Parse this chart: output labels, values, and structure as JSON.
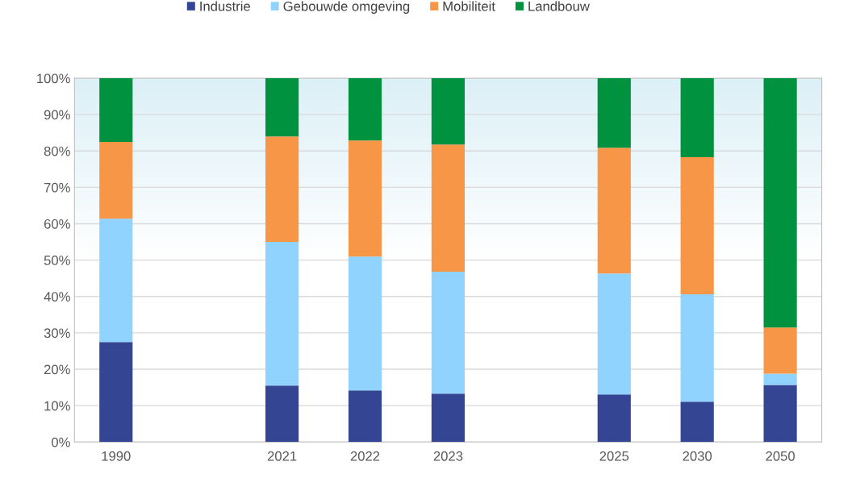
{
  "chart_data": {
    "type": "bar",
    "stacked": true,
    "categories": [
      "1990",
      null,
      "2021",
      "2022",
      "2023",
      null,
      "2025",
      "2030",
      "2050"
    ],
    "series": [
      {
        "name": "Industrie",
        "color": "#344593",
        "values": [
          27.5,
          null,
          15.5,
          14.2,
          13.3,
          null,
          13.1,
          11.1,
          15.7
        ]
      },
      {
        "name": "Gebouwde omgeving",
        "color": "#8fd3fe",
        "values": [
          33.9,
          null,
          39.5,
          36.8,
          33.5,
          null,
          33.2,
          29.5,
          3.1
        ]
      },
      {
        "name": "Mobiliteit",
        "color": "#f79646",
        "values": [
          21.1,
          null,
          29.0,
          31.9,
          35.0,
          null,
          34.6,
          37.7,
          12.7
        ]
      },
      {
        "name": "Landbouw",
        "color": "#00923f",
        "values": [
          17.5,
          null,
          16.0,
          17.1,
          18.2,
          null,
          19.1,
          21.7,
          68.5
        ]
      }
    ],
    "ylim": [
      0,
      100
    ],
    "yticks": [
      {
        "value": 0,
        "label": "0%"
      },
      {
        "value": 10,
        "label": "10%"
      },
      {
        "value": 20,
        "label": "20%"
      },
      {
        "value": 30,
        "label": "30%"
      },
      {
        "value": 40,
        "label": "40%"
      },
      {
        "value": 50,
        "label": "50%"
      },
      {
        "value": 60,
        "label": "60%"
      },
      {
        "value": 70,
        "label": "70%"
      },
      {
        "value": 80,
        "label": "80%"
      },
      {
        "value": 90,
        "label": "90%"
      },
      {
        "value": 100,
        "label": "100%"
      }
    ],
    "grid": "y",
    "legend": "top"
  }
}
